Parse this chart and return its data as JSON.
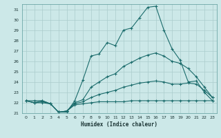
{
  "xlabel": "Humidex (Indice chaleur)",
  "bg_color": "#cce8e8",
  "grid_color": "#aacccc",
  "line_color": "#1a6b6b",
  "xlim": [
    -0.5,
    23.5
  ],
  "ylim": [
    21.0,
    31.5
  ],
  "yticks": [
    21,
    22,
    23,
    24,
    25,
    26,
    27,
    28,
    29,
    30,
    31
  ],
  "xticks": [
    0,
    1,
    2,
    3,
    4,
    5,
    6,
    7,
    8,
    9,
    10,
    11,
    12,
    13,
    14,
    15,
    16,
    17,
    18,
    19,
    20,
    21,
    22,
    23
  ],
  "series": [
    {
      "x": [
        0,
        1,
        2,
        3,
        4,
        5,
        6,
        7,
        8,
        9,
        10,
        11,
        12,
        13,
        14,
        15,
        16,
        17,
        18,
        19,
        20,
        21,
        22,
        23
      ],
      "y": [
        22.2,
        22.2,
        22.2,
        21.9,
        21.1,
        21.1,
        22.2,
        24.2,
        26.5,
        26.7,
        27.8,
        27.5,
        29.0,
        29.2,
        30.2,
        31.2,
        31.3,
        29.0,
        27.2,
        26.1,
        24.0,
        24.1,
        23.0,
        22.2
      ]
    },
    {
      "x": [
        0,
        1,
        2,
        3,
        4,
        5,
        6,
        7,
        8,
        9,
        10,
        11,
        12,
        13,
        14,
        15,
        16,
        17,
        18,
        19,
        20,
        21,
        22,
        23
      ],
      "y": [
        22.2,
        22.0,
        22.2,
        21.9,
        21.1,
        21.2,
        22.0,
        22.3,
        23.5,
        24.0,
        24.5,
        24.8,
        25.5,
        25.9,
        26.3,
        26.6,
        26.8,
        26.5,
        26.0,
        25.8,
        25.3,
        24.5,
        23.5,
        22.5
      ]
    },
    {
      "x": [
        0,
        1,
        2,
        3,
        4,
        5,
        6,
        7,
        8,
        9,
        10,
        11,
        12,
        13,
        14,
        15,
        16,
        17,
        18,
        19,
        20,
        21,
        22,
        23
      ],
      "y": [
        22.2,
        22.0,
        22.1,
        21.9,
        21.1,
        21.2,
        21.9,
        22.1,
        22.5,
        22.8,
        23.0,
        23.2,
        23.5,
        23.7,
        23.9,
        24.0,
        24.1,
        24.0,
        23.8,
        23.8,
        23.9,
        23.8,
        23.2,
        22.5
      ]
    },
    {
      "x": [
        0,
        1,
        2,
        3,
        4,
        5,
        6,
        7,
        8,
        9,
        10,
        11,
        12,
        13,
        14,
        15,
        16,
        17,
        18,
        19,
        20,
        21,
        22,
        23
      ],
      "y": [
        22.2,
        22.0,
        22.0,
        21.9,
        21.1,
        21.2,
        21.8,
        21.9,
        22.0,
        22.1,
        22.1,
        22.1,
        22.1,
        22.2,
        22.2,
        22.2,
        22.2,
        22.2,
        22.2,
        22.2,
        22.2,
        22.2,
        22.2,
        22.2
      ]
    }
  ]
}
